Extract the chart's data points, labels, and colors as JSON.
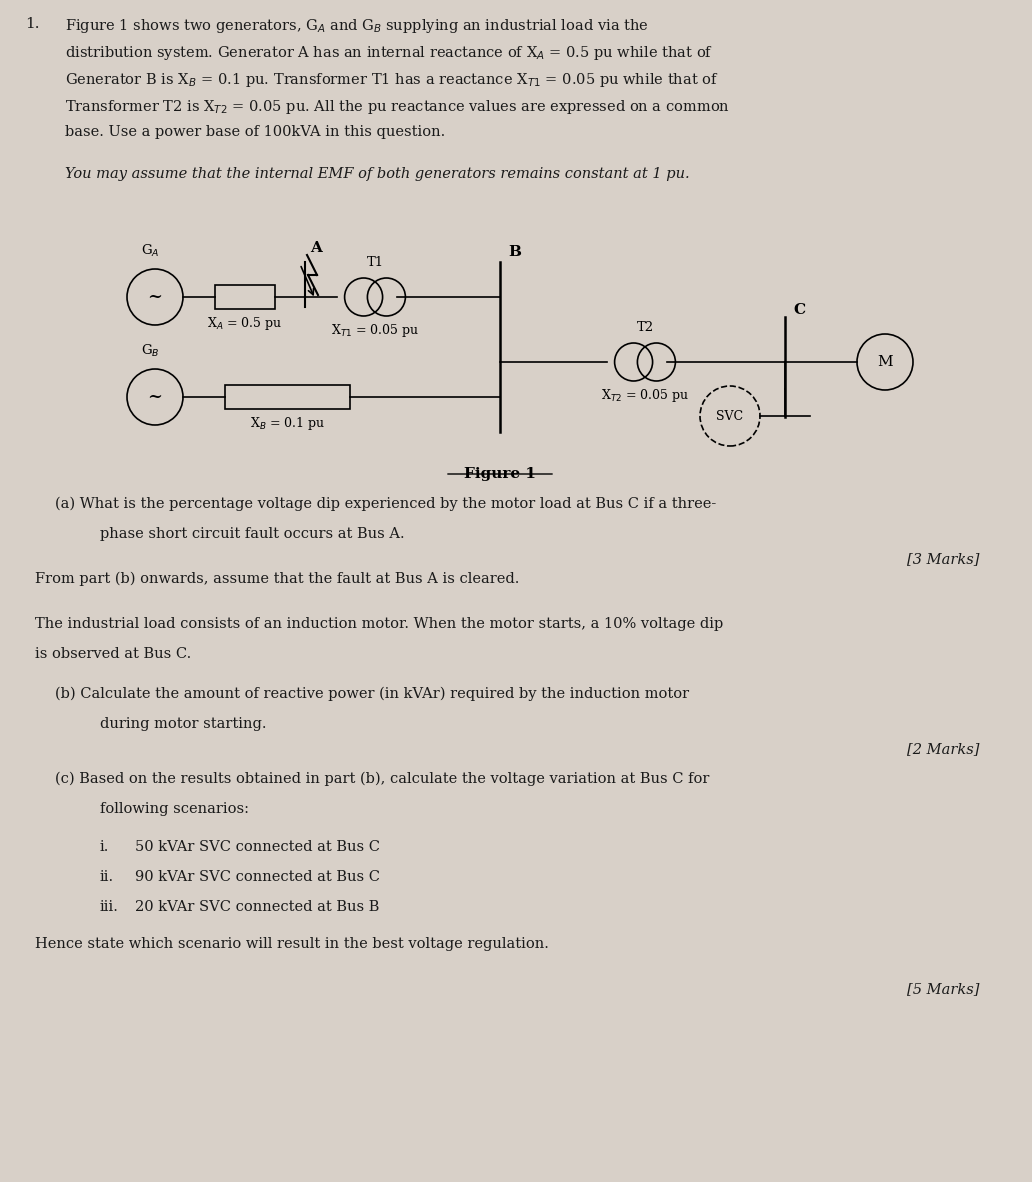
{
  "bg_color": "#d8d0c8",
  "text_color": "#1a1a1a",
  "title_number": "1.",
  "paragraph1": "Figure 1 shows two generators, G₀ and G₁ supplying an industrial load via the\ndistribution system. Generator A has an internal reactance of X₀ = 0.5 pu while that of\nGenerator B is X₁ = 0.1 pu. Transformer T1 has a reactance X₀₁ = 0.05 pu while that of\nTransformer T2 is X₁₂ = 0.05 pu. All the pu reactance values are expressed on a common\nbase. Use a power base of 100kVA in this question.",
  "paragraph2": "You may assume that the internal EMF of both generators remains constant at 1 pu.",
  "figure_caption": "Figure 1",
  "part_a": "(a) What is the percentage voltage dip experienced by the motor load at Bus C if a three-\n      phase short circuit fault occurs at Bus A.",
  "marks_a": "[3 Marks]",
  "part_b_intro1": "From part (b) onwards, assume that the fault at Bus A is cleared.",
  "part_b_intro2": "The industrial load consists of an induction motor. When the motor starts, a 10% voltage dip\nis observed at Bus C.",
  "part_b": "(b) Calculate the amount of reactive power (in kVAr) required by the induction motor\n      during motor starting.",
  "marks_b": "[2 Marks]",
  "part_c": "(c) Based on the results obtained in part (b), calculate the voltage variation at Bus C for\n      following scenarios:",
  "scenarios": [
    "i.    50 kVAr SVC connected at Bus C",
    "ii.   90 kVAr SVC connected at Bus C",
    "iii.  20 kVAr SVC connected at Bus B"
  ],
  "conclusion": "Hence state which scenario will result in the best voltage regulation.",
  "marks_c": "[5 Marks]"
}
